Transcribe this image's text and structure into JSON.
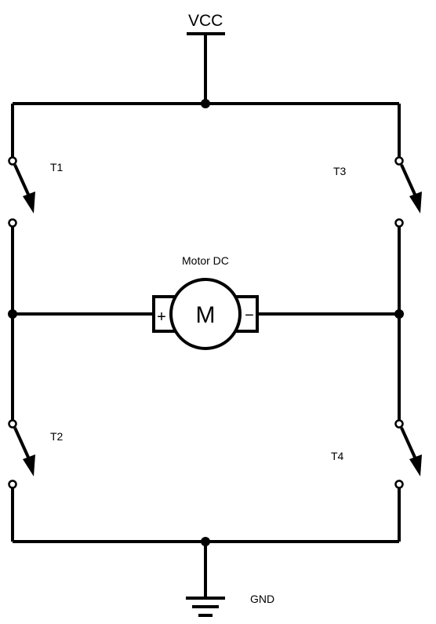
{
  "labels": {
    "vcc": "VCC",
    "gnd": "GND",
    "motor_title": "Motor DC",
    "motor_symbol": "M",
    "plus": "+",
    "minus": "−",
    "t1": "T1",
    "t2": "T2",
    "t3": "T3",
    "t4": "T4"
  },
  "colors": {
    "wire": "#000000",
    "background": "#ffffff"
  }
}
